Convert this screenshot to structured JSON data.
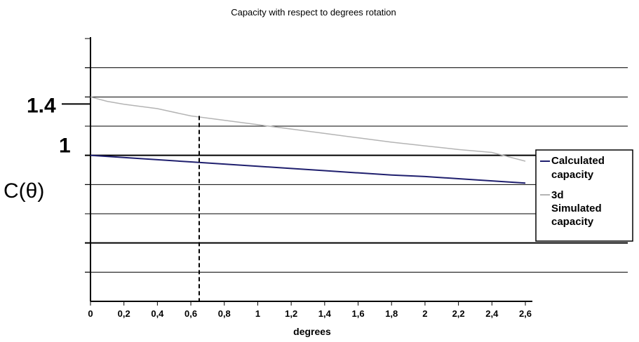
{
  "chart_data": {
    "type": "line",
    "title": "Capacity with respect to degrees rotation",
    "xlabel": "degrees",
    "ylabel": "C(θ)",
    "xlim": [
      0,
      2.6
    ],
    "ylim": [
      0,
      1.8
    ],
    "x_ticks": [
      "0",
      "0,2",
      "0,4",
      "0,6",
      "0,8",
      "1",
      "1,2",
      "1,4",
      "1,6",
      "1,8",
      "2",
      "2,2",
      "2,4",
      "2,6"
    ],
    "x_tick_values": [
      0,
      0.2,
      0.4,
      0.6,
      0.8,
      1.0,
      1.2,
      1.4,
      1.6,
      1.8,
      2.0,
      2.2,
      2.4,
      2.6
    ],
    "y_tick_labels": [
      {
        "value": 1.4,
        "label": "1.4"
      },
      {
        "value": 1.0,
        "label": "1"
      }
    ],
    "grid": true,
    "gridlines_y": [
      0.2,
      0.4,
      0.6,
      0.8,
      1.0,
      1.2,
      1.4,
      1.6
    ],
    "legend_position": "right",
    "series": [
      {
        "name": "Calculated capacity",
        "color": "#1f1f6e",
        "x": [
          0,
          0.2,
          0.4,
          0.6,
          0.8,
          1.0,
          1.2,
          1.4,
          1.6,
          1.8,
          2.0,
          2.2,
          2.4,
          2.6
        ],
        "values": [
          1.0,
          0.985,
          0.97,
          0.955,
          0.94,
          0.925,
          0.91,
          0.895,
          0.88,
          0.865,
          0.855,
          0.84,
          0.825,
          0.81
        ]
      },
      {
        "name": "3d Simulated capacity",
        "color": "#b4b4b4",
        "x": [
          0,
          0.1,
          0.2,
          0.4,
          0.6,
          0.8,
          1.0,
          1.2,
          1.4,
          1.6,
          1.8,
          2.0,
          2.2,
          2.4,
          2.6
        ],
        "values": [
          1.4,
          1.37,
          1.35,
          1.32,
          1.27,
          1.24,
          1.21,
          1.18,
          1.15,
          1.12,
          1.09,
          1.065,
          1.04,
          1.02,
          0.96
        ]
      }
    ],
    "annotations": [
      {
        "type": "vertical-dashed",
        "x": 0.65,
        "y_top": 1.27
      }
    ]
  }
}
